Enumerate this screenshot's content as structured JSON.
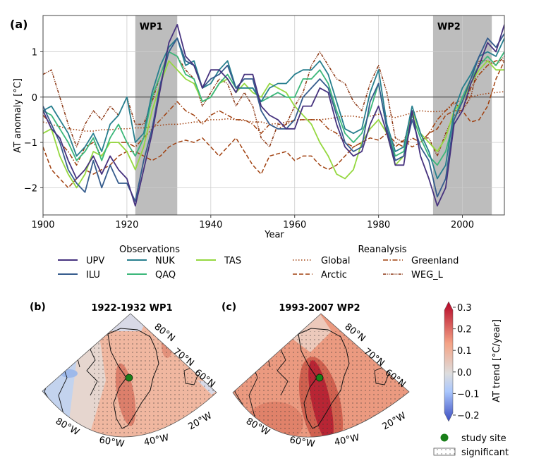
{
  "chart_data": [
    {
      "type": "line",
      "panel_label": "(a)",
      "xlabel": "Year",
      "ylabel": "AT anomaly [°C]",
      "xlim": [
        1900,
        2010
      ],
      "ylim": [
        -2.6,
        1.8
      ],
      "xticks": [
        "1900",
        "1920",
        "1940",
        "1960",
        "1980",
        "2000"
      ],
      "yticks": [
        "−2",
        "−1",
        "0",
        "1"
      ],
      "grid": true,
      "shaded_periods": [
        {
          "label": "WP1",
          "start": 1922,
          "end": 1932
        },
        {
          "label": "WP2",
          "start": 1993,
          "end": 2007
        }
      ],
      "x_start": 1900,
      "x_step": 2,
      "legend_groups": [
        {
          "title": "Observations",
          "placement": "bottom-left"
        },
        {
          "title": "Reanalysis",
          "placement": "bottom-right"
        }
      ],
      "series": [
        {
          "name": "UPV",
          "group": 0,
          "color": "#46327e",
          "dash": "",
          "values": [
            -0.3,
            -0.7,
            -0.9,
            -1.4,
            -1.8,
            -1.6,
            -1.3,
            -1.7,
            -1.3,
            -1.6,
            -1.8,
            -2.4,
            -1.6,
            -0.8,
            0.2,
            1.2,
            1.6,
            0.9,
            0.7,
            0.2,
            0.6,
            0.6,
            0.4,
            0.1,
            0.5,
            0.5,
            -0.2,
            -0.4,
            -0.5,
            -0.7,
            -0.7,
            -0.2,
            -0.2,
            0.2,
            0.1,
            -0.6,
            -1.1,
            -1.3,
            -1.2,
            -0.6,
            -0.2,
            -0.8,
            -1.5,
            -1.5,
            -0.3,
            -1.3,
            -1.8,
            -2.4,
            -2.0,
            -0.6,
            -0.3,
            0.3,
            0.7,
            1.2,
            1.0,
            1.6
          ]
        },
        {
          "name": "ILU",
          "group": 0,
          "color": "#365c8d",
          "dash": "",
          "values": [
            -0.2,
            -0.6,
            -1.0,
            -1.6,
            -1.9,
            -2.1,
            -1.4,
            -2.0,
            -1.5,
            -1.9,
            -1.9,
            -2.3,
            -1.4,
            -0.7,
            0.3,
            1.0,
            1.3,
            0.8,
            0.7,
            0.2,
            0.4,
            0.5,
            0.7,
            0.2,
            0.4,
            0.4,
            -0.3,
            -0.6,
            -0.7,
            -0.7,
            -0.5,
            0.0,
            0.2,
            0.4,
            0.2,
            -0.4,
            -1.0,
            -1.2,
            -1.1,
            -0.1,
            0.3,
            -0.7,
            -1.4,
            -1.3,
            -0.5,
            -1.1,
            -1.4,
            -2.2,
            -1.8,
            -0.5,
            -0.1,
            0.4,
            0.9,
            1.3,
            1.1,
            1.4
          ]
        },
        {
          "name": "NUK",
          "group": 0,
          "color": "#277f8e",
          "dash": "",
          "values": [
            -0.3,
            -0.2,
            -0.5,
            -0.8,
            -1.3,
            -1.1,
            -0.8,
            -1.2,
            -0.6,
            -0.4,
            0.0,
            -1.0,
            -0.8,
            0.1,
            0.7,
            1.1,
            1.3,
            0.7,
            0.8,
            0.2,
            0.3,
            0.6,
            0.8,
            0.2,
            0.2,
            0.2,
            -0.1,
            0.2,
            0.3,
            0.3,
            0.5,
            0.6,
            0.6,
            0.8,
            0.5,
            -0.1,
            -0.7,
            -0.8,
            -0.7,
            0.1,
            0.6,
            -0.6,
            -1.2,
            -1.1,
            -0.2,
            -0.8,
            -1.2,
            -1.8,
            -1.5,
            -0.3,
            0.2,
            0.5,
            0.9,
            1.0,
            0.9,
            1.3
          ]
        },
        {
          "name": "QAQ",
          "group": 0,
          "color": "#3bb77a",
          "dash": "",
          "values": [
            -0.3,
            -0.4,
            -0.7,
            -1.0,
            -1.4,
            -1.2,
            -0.9,
            -1.4,
            -0.9,
            -0.6,
            -1.0,
            -1.3,
            -0.9,
            0.0,
            0.5,
            1.0,
            0.9,
            0.5,
            0.4,
            -0.1,
            0.0,
            0.3,
            0.5,
            0.2,
            0.2,
            0.2,
            -0.1,
            0.0,
            0.1,
            0.0,
            0.0,
            0.4,
            0.4,
            0.6,
            0.3,
            -0.3,
            -0.8,
            -1.0,
            -0.8,
            -0.3,
            0.3,
            -0.7,
            -1.3,
            -1.2,
            -0.4,
            -0.9,
            -1.3,
            -1.5,
            -1.2,
            -0.5,
            0.0,
            0.4,
            0.7,
            0.9,
            0.7,
            1.0
          ]
        },
        {
          "name": "TAS",
          "group": 0,
          "color": "#95d840",
          "dash": "",
          "values": [
            -0.8,
            -0.7,
            -1.3,
            -1.7,
            -2.0,
            -1.7,
            -1.2,
            -1.3,
            -1.0,
            -1.0,
            -1.2,
            -1.6,
            -1.1,
            -0.3,
            0.3,
            0.8,
            0.6,
            0.4,
            0.3,
            -0.1,
            0.0,
            0.3,
            0.4,
            0.1,
            0.3,
            0.1,
            0.0,
            0.3,
            0.2,
            0.1,
            -0.2,
            -0.4,
            -0.6,
            -1.0,
            -1.3,
            -1.7,
            -1.8,
            -1.6,
            -1.0,
            -0.7,
            -0.5,
            -0.8,
            -1.5,
            -1.3,
            -0.3,
            -0.8,
            -1.0,
            -1.2,
            -0.9,
            -0.3,
            -0.1,
            0.3,
            0.6,
            0.8,
            0.6,
            0.6
          ]
        },
        {
          "name": "Global",
          "group": 1,
          "color": "#a0400f",
          "dash": "1.5 2.5",
          "values": [
            -0.55,
            -0.6,
            -0.65,
            -0.7,
            -0.72,
            -0.75,
            -0.75,
            -0.72,
            -0.72,
            -0.7,
            -0.7,
            -0.68,
            -0.68,
            -0.65,
            -0.62,
            -0.6,
            -0.6,
            -0.58,
            -0.55,
            -0.55,
            -0.5,
            -0.5,
            -0.48,
            -0.5,
            -0.52,
            -0.55,
            -0.55,
            -0.6,
            -0.58,
            -0.55,
            -0.52,
            -0.5,
            -0.5,
            -0.5,
            -0.48,
            -0.45,
            -0.42,
            -0.42,
            -0.45,
            -0.42,
            -0.38,
            -0.42,
            -0.45,
            -0.4,
            -0.35,
            -0.3,
            -0.32,
            -0.32,
            -0.3,
            -0.15,
            -0.05,
            0.0,
            0.05,
            0.08,
            0.1,
            0.12
          ]
        },
        {
          "name": "Arctic",
          "group": 1,
          "color": "#a0400f",
          "dash": "6 3",
          "values": [
            -1.1,
            -1.6,
            -1.8,
            -2.0,
            -1.8,
            -1.6,
            -1.7,
            -1.6,
            -1.5,
            -1.3,
            -1.2,
            -1.2,
            -1.3,
            -1.4,
            -1.3,
            -1.1,
            -1.0,
            -0.95,
            -1.0,
            -0.9,
            -1.1,
            -1.3,
            -1.1,
            -0.9,
            -1.2,
            -1.5,
            -1.7,
            -1.3,
            -1.25,
            -1.2,
            -1.4,
            -1.3,
            -1.3,
            -1.5,
            -1.6,
            -1.5,
            -1.3,
            -1.1,
            -1.0,
            -0.9,
            -0.95,
            -0.8,
            -1.1,
            -0.95,
            -1.1,
            -1.0,
            -0.8,
            -0.7,
            -0.4,
            -0.3,
            -0.3,
            -0.55,
            -0.5,
            -0.2,
            0.4,
            0.8
          ]
        },
        {
          "name": "Greenland",
          "group": 1,
          "color": "#a0400f",
          "dash": "7 2.5 1.5 2.5",
          "values": [
            -0.4,
            -0.6,
            -1.0,
            -1.2,
            -1.5,
            -1.1,
            -1.0,
            -1.3,
            -1.0,
            -1.0,
            -1.0,
            -1.1,
            -0.9,
            -0.7,
            -0.5,
            -0.3,
            -0.1,
            -0.3,
            -0.4,
            -0.6,
            -0.4,
            -0.3,
            -0.4,
            -0.5,
            -0.5,
            -0.6,
            -0.8,
            -0.6,
            -0.7,
            -0.6,
            -0.5,
            -0.5,
            -0.5,
            -0.5,
            -0.7,
            -0.8,
            -1.0,
            -1.1,
            -1.0,
            -0.7,
            -0.5,
            -0.8,
            -1.0,
            -1.1,
            -0.9,
            -1.0,
            -0.8,
            -0.5,
            -0.3,
            -0.1,
            -0.3,
            0.2,
            0.5,
            0.7,
            0.8,
            0.8
          ]
        },
        {
          "name": "WEG_L",
          "group": 1,
          "color": "#8a3410",
          "dash": "4 1.5 1.2 1.5 1.2 1.5",
          "values": [
            0.5,
            0.6,
            0.0,
            -0.6,
            -1.1,
            -0.6,
            -0.3,
            -0.5,
            -0.2,
            -0.4,
            0.0,
            -0.6,
            -0.6,
            -0.1,
            0.5,
            1.0,
            0.9,
            0.6,
            0.4,
            -0.2,
            0.1,
            0.4,
            0.3,
            -0.2,
            0.1,
            -0.2,
            -0.9,
            -1.1,
            -0.6,
            -0.6,
            -0.2,
            0.1,
            0.7,
            1.0,
            0.7,
            0.4,
            0.3,
            -0.1,
            -0.3,
            0.3,
            0.7,
            0.1,
            -0.9,
            -1.0,
            -0.4,
            -0.9,
            -0.9,
            -1.3,
            -0.8,
            -0.4,
            -0.3,
            0.0,
            0.8,
            0.8,
            0.7,
            0.9
          ]
        }
      ]
    },
    {
      "type": "heatmap",
      "panel_label": "(b)",
      "title": "1922-1932 WP1",
      "lat_labels": [
        "80°N",
        "70°N",
        "60°N"
      ],
      "lon_labels": [
        "80°W",
        "60°W",
        "40°W",
        "20°W"
      ]
    },
    {
      "type": "heatmap",
      "panel_label": "(c)",
      "title": "1993-2007 WP2",
      "lat_labels": [
        "80°N",
        "70°N",
        "60°N"
      ],
      "lon_labels": [
        "80°W",
        "60°W",
        "40°W",
        "20°W"
      ]
    }
  ],
  "colorbar": {
    "label": "AT trend [°C/year]",
    "ticks": [
      "0.3",
      "0.2",
      "0.1",
      "0.0",
      "−0.1",
      "−0.2"
    ],
    "range": [
      -0.2,
      0.3
    ],
    "colors": [
      "#3b4cc0",
      "#aac7fd",
      "#dddddd",
      "#f4a386",
      "#b40426"
    ]
  },
  "map_legend": {
    "study_site": "study site",
    "significant": "significant",
    "study_site_color": "#1a7f1a"
  }
}
